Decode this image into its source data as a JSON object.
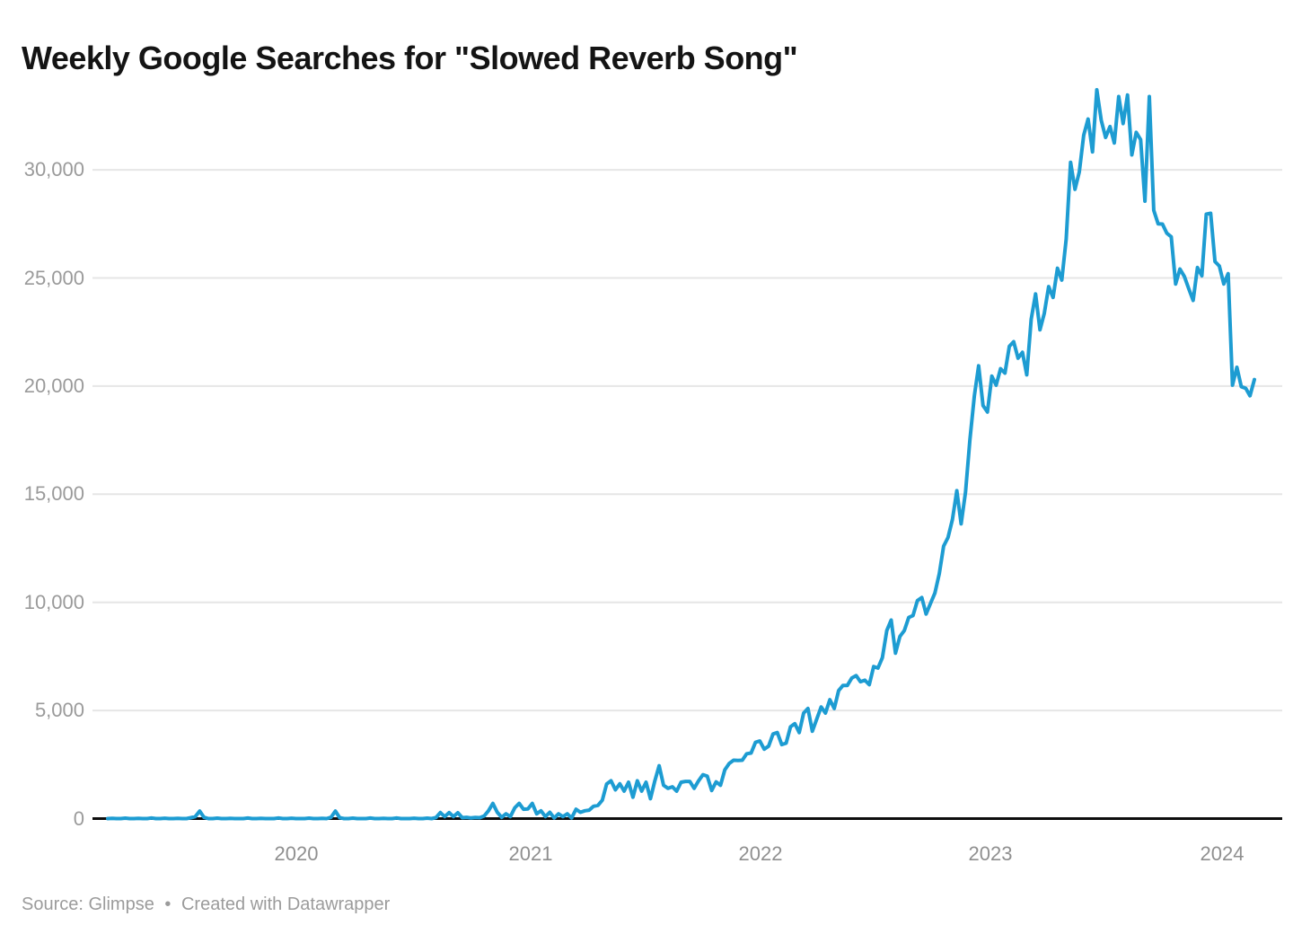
{
  "title": "Weekly Google Searches for \"Slowed Reverb Song\"",
  "footer": {
    "source": "Source: Glimpse",
    "separator": "•",
    "credit": "Created with Datawrapper"
  },
  "colors": {
    "line": "#1D9CD2",
    "gridline": "#e6e6e6",
    "zero_axis": "#0d0d0d",
    "tick_text": "#9a9a9a",
    "title_text": "#141414"
  },
  "chart_data": {
    "type": "line",
    "title": "Weekly Google Searches for \"Slowed Reverb Song\"",
    "xlabel": "",
    "ylabel": "",
    "x_unit": "week",
    "x_tick_labels": [
      "2020",
      "2021",
      "2022",
      "2023",
      "2024"
    ],
    "y_ticks": [
      0,
      5000,
      10000,
      15000,
      20000,
      25000,
      30000
    ],
    "y_tick_labels": [
      "0",
      "5,000",
      "10,000",
      "15,000",
      "20,000",
      "25,000",
      "30,000"
    ],
    "ylim": [
      0,
      33700
    ],
    "grid": "horizontal",
    "legend": "none",
    "values": [
      0,
      10,
      0,
      0,
      20,
      0,
      0,
      10,
      0,
      0,
      30,
      0,
      0,
      15,
      0,
      0,
      10,
      0,
      0,
      40,
      90,
      350,
      60,
      0,
      0,
      20,
      0,
      0,
      10,
      0,
      0,
      0,
      25,
      0,
      0,
      10,
      0,
      0,
      0,
      30,
      0,
      0,
      15,
      0,
      0,
      0,
      20,
      0,
      0,
      10,
      0,
      60,
      350,
      40,
      0,
      0,
      20,
      0,
      0,
      0,
      25,
      0,
      0,
      10,
      0,
      0,
      30,
      0,
      0,
      0,
      15,
      0,
      0,
      20,
      0,
      50,
      280,
      90,
      280,
      90,
      270,
      40,
      60,
      30,
      50,
      40,
      120,
      360,
      700,
      290,
      60,
      220,
      90,
      500,
      700,
      430,
      450,
      700,
      220,
      360,
      90,
      290,
      30,
      220,
      90,
      220,
      30,
      430,
      290,
      360,
      390,
      570,
      610,
      850,
      1600,
      1750,
      1330,
      1610,
      1270,
      1680,
      990,
      1750,
      1270,
      1680,
      920,
      1750,
      2440,
      1540,
      1400,
      1470,
      1270,
      1680,
      1720,
      1720,
      1400,
      1750,
      2030,
      1960,
      1300,
      1700,
      1540,
      2250,
      2550,
      2700,
      2690,
      2700,
      3000,
      3030,
      3530,
      3590,
      3210,
      3350,
      3910,
      3980,
      3420,
      3490,
      4250,
      4390,
      3980,
      4880,
      5090,
      4040,
      4600,
      5160,
      4880,
      5500,
      5090,
      5920,
      6160,
      6160,
      6500,
      6610,
      6330,
      6400,
      6190,
      7030,
      6960,
      7440,
      8690,
      9180,
      7650,
      8420,
      8690,
      9300,
      9390,
      10080,
      10220,
      9460,
      9950,
      10430,
      11330,
      12600,
      13000,
      13830,
      15160,
      13630,
      15100,
      17530,
      19540,
      20940,
      19100,
      18800,
      20460,
      20040,
      20800,
      20600,
      21840,
      22050,
      21290,
      21560,
      20520,
      23080,
      24260,
      22600,
      23360,
      24600,
      24100,
      25450,
      24900,
      26800,
      30350,
      29100,
      29900,
      31600,
      32350,
      30830,
      33700,
      32300,
      31500,
      32000,
      31240,
      33390,
      32140,
      33460,
      30690,
      31730,
      31400,
      28550,
      33390,
      28130,
      27500,
      27490,
      27070,
      26900,
      24720,
      25410,
      25070,
      24500,
      23960,
      25480,
      25100,
      27950,
      27990,
      25760,
      25550,
      24720,
      25200,
      20040,
      20870,
      19970,
      19900,
      19550,
      20300
    ]
  }
}
